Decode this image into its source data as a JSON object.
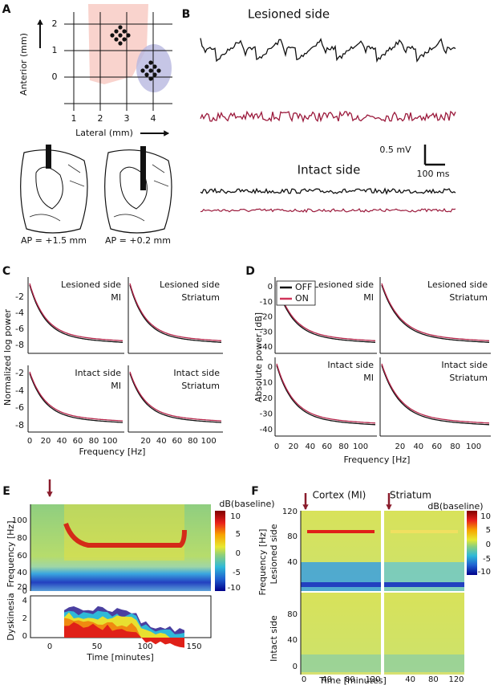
{
  "panel_a": {
    "letter": "A",
    "y_label": "Anterior (mm)",
    "x_label": "Lateral (mm)",
    "y_ticks": [
      "2",
      "1",
      "0"
    ],
    "x_ticks": [
      "1",
      "2",
      "3",
      "4"
    ],
    "sections": [
      "AP = +1.5 mm",
      "AP = +0.2 mm"
    ]
  },
  "panel_b": {
    "letter": "B",
    "top_title": "Lesioned side",
    "bottom_title": "Intact side",
    "scale_v": "0.5 mV",
    "scale_t": "100 ms"
  },
  "panel_c": {
    "letter": "C",
    "y_label": "Normalized log power",
    "x_label": "Frequency [Hz]",
    "y_ticks": [
      "-2",
      "-4",
      "-6",
      "-8"
    ],
    "x_ticks": [
      "0",
      "20",
      "40",
      "60",
      "80",
      "100"
    ],
    "subplots": [
      [
        "Lesioned side",
        "MI"
      ],
      [
        "Lesioned side",
        "Striatum"
      ],
      [
        "Intact side",
        "MI"
      ],
      [
        "Intact side",
        "Striatum"
      ]
    ]
  },
  "panel_d": {
    "letter": "D",
    "y_label": "Absolute power [dB]",
    "x_label": "Frequency [Hz]",
    "legend": [
      "OFF",
      "ON"
    ],
    "y_ticks": [
      "0",
      "-10",
      "-20",
      "-30",
      "-40"
    ],
    "x_ticks": [
      "0",
      "20",
      "40",
      "60",
      "80",
      "100"
    ],
    "subplots": [
      [
        "Lesioned side",
        "MI"
      ],
      [
        "Lesioned side",
        "Striatum"
      ],
      [
        "Intact side",
        "MI"
      ],
      [
        "Intact side",
        "Striatum"
      ]
    ]
  },
  "panel_e": {
    "letter": "E",
    "y_label": "Frequency [Hz]",
    "colorbar_label": "dB(baseline)",
    "colorbar_ticks": [
      "10",
      "5",
      "0",
      "-5",
      "-10"
    ],
    "y_ticks": [
      "100",
      "80",
      "60",
      "40",
      "20",
      "0"
    ],
    "lower_y_label": "Dyskinesia",
    "lower_y_ticks": [
      "4",
      "2",
      "0"
    ],
    "x_ticks": [
      "0",
      "50",
      "100",
      "150"
    ],
    "x_label": "Time [minutes]"
  },
  "panel_f": {
    "letter": "F",
    "titles": [
      "Cortex (MI)",
      "Striatum"
    ],
    "colorbar_label": "dB(baseline)",
    "colorbar_ticks": [
      "10",
      "5",
      "0",
      "-5",
      "-10"
    ],
    "row_labels": [
      "Lesioned side",
      "Intact side"
    ],
    "y_label": "Frequency [Hz]",
    "upper_y_ticks": [
      "120",
      "80",
      "40"
    ],
    "lower_y_ticks": [
      "80",
      "40",
      "0"
    ],
    "x_ticks": [
      "0",
      "40",
      "80",
      "120"
    ],
    "x_label": "Time [minutes]"
  }
}
